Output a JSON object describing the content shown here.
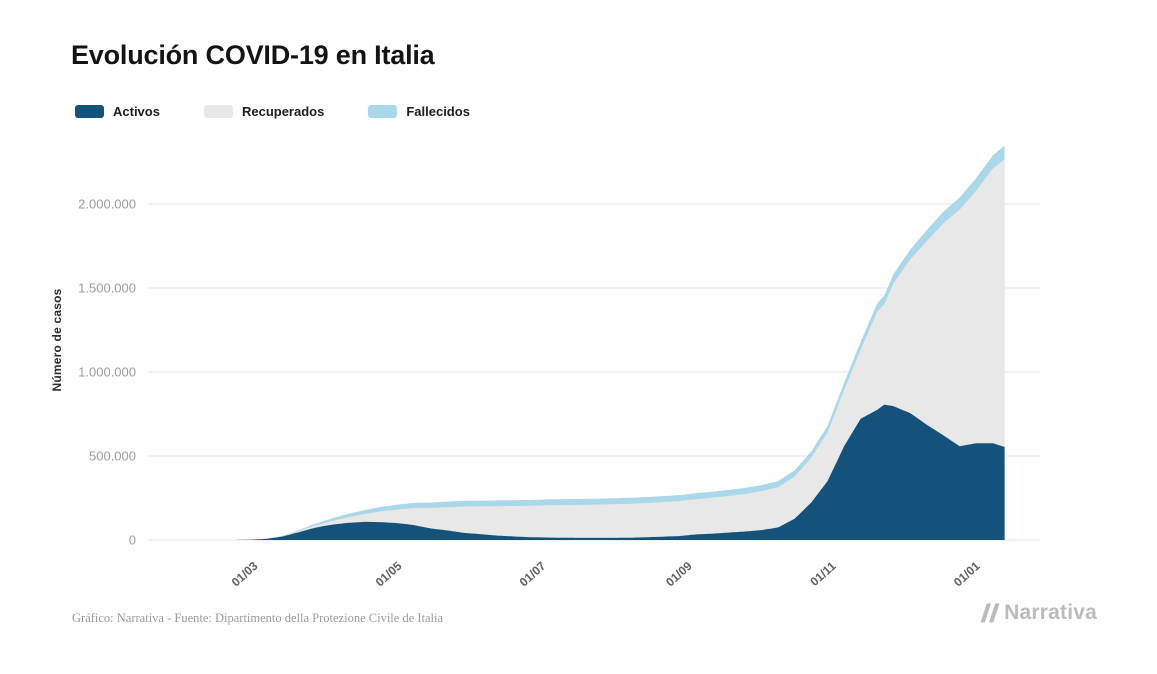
{
  "header": {
    "title": "Evolución COVID-19 en Italia"
  },
  "footer": {
    "source_text": "Gráfico: Narrativa - Fuente: Dipartimento della Protezione Civile de Italia",
    "brand": "Narrativa"
  },
  "chart_data": {
    "type": "area",
    "stacked": true,
    "title": "Evolución COVID-19 en Italia",
    "xlabel": "",
    "ylabel": "Número de casos",
    "ylim": [
      0,
      2380000
    ],
    "grid": "horizontal",
    "legend_position": "top",
    "x_domain": [
      "2020-01-18",
      "2021-01-30"
    ],
    "yticks": [
      {
        "value": 0,
        "label": "0"
      },
      {
        "value": 500000,
        "label": "500.000"
      },
      {
        "value": 1000000,
        "label": "1.000.000"
      },
      {
        "value": 1500000,
        "label": "1.500.000"
      },
      {
        "value": 2000000,
        "label": "2.000.000"
      }
    ],
    "xticks": [
      {
        "date": "2020-03-01",
        "label": "01/03"
      },
      {
        "date": "2020-05-01",
        "label": "01/05"
      },
      {
        "date": "2020-07-01",
        "label": "01/07"
      },
      {
        "date": "2020-09-01",
        "label": "01/09"
      },
      {
        "date": "2020-11-01",
        "label": "01/11"
      },
      {
        "date": "2021-01-01",
        "label": "01/01"
      }
    ],
    "series": [
      {
        "name": "Activos",
        "key": "activos",
        "color": "#14527b"
      },
      {
        "name": "Recuperados",
        "key": "recuperados",
        "color": "#e8e8e8"
      },
      {
        "name": "Fallecidos",
        "key": "fallecidos",
        "color": "#aad7ea"
      }
    ],
    "points": {
      "columns": [
        "date",
        "activos",
        "recuperados",
        "fallecidos"
      ],
      "rows": [
        [
          "2020-02-24",
          221,
          1,
          7
        ],
        [
          "2020-03-01",
          1577,
          83,
          34
        ],
        [
          "2020-03-08",
          6387,
          622,
          366
        ],
        [
          "2020-03-15",
          20603,
          2335,
          1809
        ],
        [
          "2020-03-22",
          46638,
          7024,
          5476
        ],
        [
          "2020-03-29",
          73880,
          13030,
          10779
        ],
        [
          "2020-04-05",
          91246,
          21815,
          15887
        ],
        [
          "2020-04-12",
          102253,
          34211,
          19899
        ],
        [
          "2020-04-19",
          108257,
          47055,
          23660
        ],
        [
          "2020-04-26",
          106103,
          64928,
          26644
        ],
        [
          "2020-05-03",
          100179,
          81654,
          28884
        ],
        [
          "2020-05-10",
          87961,
          103031,
          30560
        ],
        [
          "2020-05-17",
          68351,
          122810,
          31908
        ],
        [
          "2020-05-24",
          56594,
          138840,
          32785
        ],
        [
          "2020-05-31",
          42075,
          157507,
          33415
        ],
        [
          "2020-06-07",
          34730,
          165837,
          33964
        ],
        [
          "2020-06-14",
          26274,
          174865,
          34301
        ],
        [
          "2020-06-21",
          20972,
          181907,
          34610
        ],
        [
          "2020-06-28",
          16836,
          186725,
          34716
        ],
        [
          "2020-07-05",
          14709,
          191944,
          34854
        ],
        [
          "2020-07-12",
          13428,
          194928,
          34945
        ],
        [
          "2020-07-19",
          12404,
          196246,
          35045
        ],
        [
          "2020-07-26",
          12442,
          198593,
          35102
        ],
        [
          "2020-08-02",
          12474,
          200460,
          35166
        ],
        [
          "2020-08-09",
          13561,
          202461,
          35203
        ],
        [
          "2020-08-16",
          16014,
          203968,
          35400
        ],
        [
          "2020-08-23",
          19714,
          206015,
          35430
        ],
        [
          "2020-08-30",
          23156,
          207944,
          35473
        ],
        [
          "2020-09-06",
          32993,
          210015,
          35541
        ],
        [
          "2020-09-13",
          37503,
          213950,
          35603
        ],
        [
          "2020-09-20",
          44098,
          218351,
          35707
        ],
        [
          "2020-09-27",
          50323,
          223693,
          35835
        ],
        [
          "2020-10-04",
          58903,
          231914,
          36002
        ],
        [
          "2020-10-11",
          74829,
          239709,
          36166
        ],
        [
          "2020-10-18",
          126237,
          251461,
          36705
        ],
        [
          "2020-10-25",
          222241,
          266203,
          37338
        ],
        [
          "2020-11-01",
          351178,
          289426,
          38826
        ],
        [
          "2020-11-08",
          558636,
          335074,
          41394
        ],
        [
          "2020-11-15",
          721866,
          411434,
          45229
        ],
        [
          "2020-11-22",
          774552,
          584493,
          49823
        ],
        [
          "2020-11-25",
          805947,
          597033,
          52028
        ],
        [
          "2020-11-29",
          796312,
          734503,
          54363
        ],
        [
          "2020-12-06",
          755306,
          913494,
          60078
        ],
        [
          "2020-12-13",
          686031,
          1093161,
          64520
        ],
        [
          "2020-12-20",
          623112,
          1261626,
          68447
        ],
        [
          "2020-12-27",
          558148,
          1408686,
          71925
        ],
        [
          "2021-01-03",
          576214,
          1503900,
          75332
        ],
        [
          "2021-01-10",
          576427,
          1633839,
          78755
        ],
        [
          "2021-01-15",
          553374,
          1713030,
          81325
        ]
      ]
    }
  }
}
